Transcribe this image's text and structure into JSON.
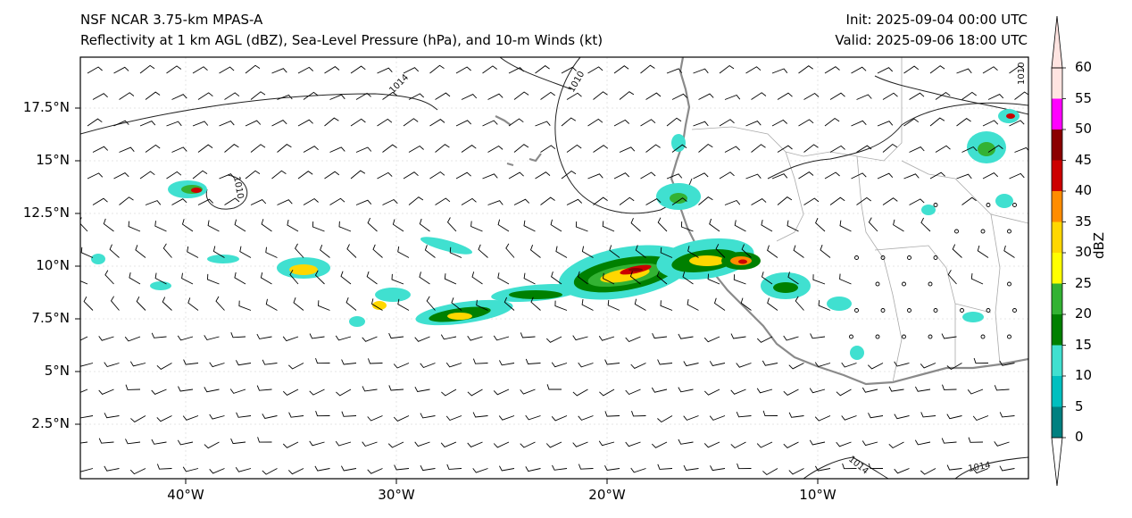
{
  "titles": {
    "left_line1": "NSF NCAR 3.75-km MPAS-A",
    "left_line2": "Reflectivity at 1 km AGL (dBZ), Sea-Level Pressure (hPa), and 10-m Winds (kt)",
    "right_line1": "Init: 2025-09-04 00:00 UTC",
    "right_line2": "Valid: 2025-09-06 18:00 UTC"
  },
  "map": {
    "lat_ticks": [
      "17.5°N",
      "15°N",
      "12.5°N",
      "10°N",
      "7.5°N",
      "5°N",
      "2.5°N"
    ],
    "lon_ticks": [
      "40°W",
      "30°W",
      "20°W",
      "10°W"
    ],
    "isobar_labels": [
      "1014",
      "1010",
      "1010",
      "1010",
      "1014",
      "1014"
    ]
  },
  "colorbar": {
    "title": "dBZ",
    "labels": [
      "0",
      "5",
      "10",
      "15",
      "20",
      "25",
      "30",
      "35",
      "40",
      "45",
      "50",
      "55",
      "60"
    ],
    "colors": [
      "#008080",
      "#00bfbf",
      "#40e0d0",
      "#008000",
      "#33b233",
      "#ffff00",
      "#ffd700",
      "#ff8c00",
      "#cc0000",
      "#8b0000",
      "#ff00ff",
      "#ffe4e1"
    ]
  }
}
